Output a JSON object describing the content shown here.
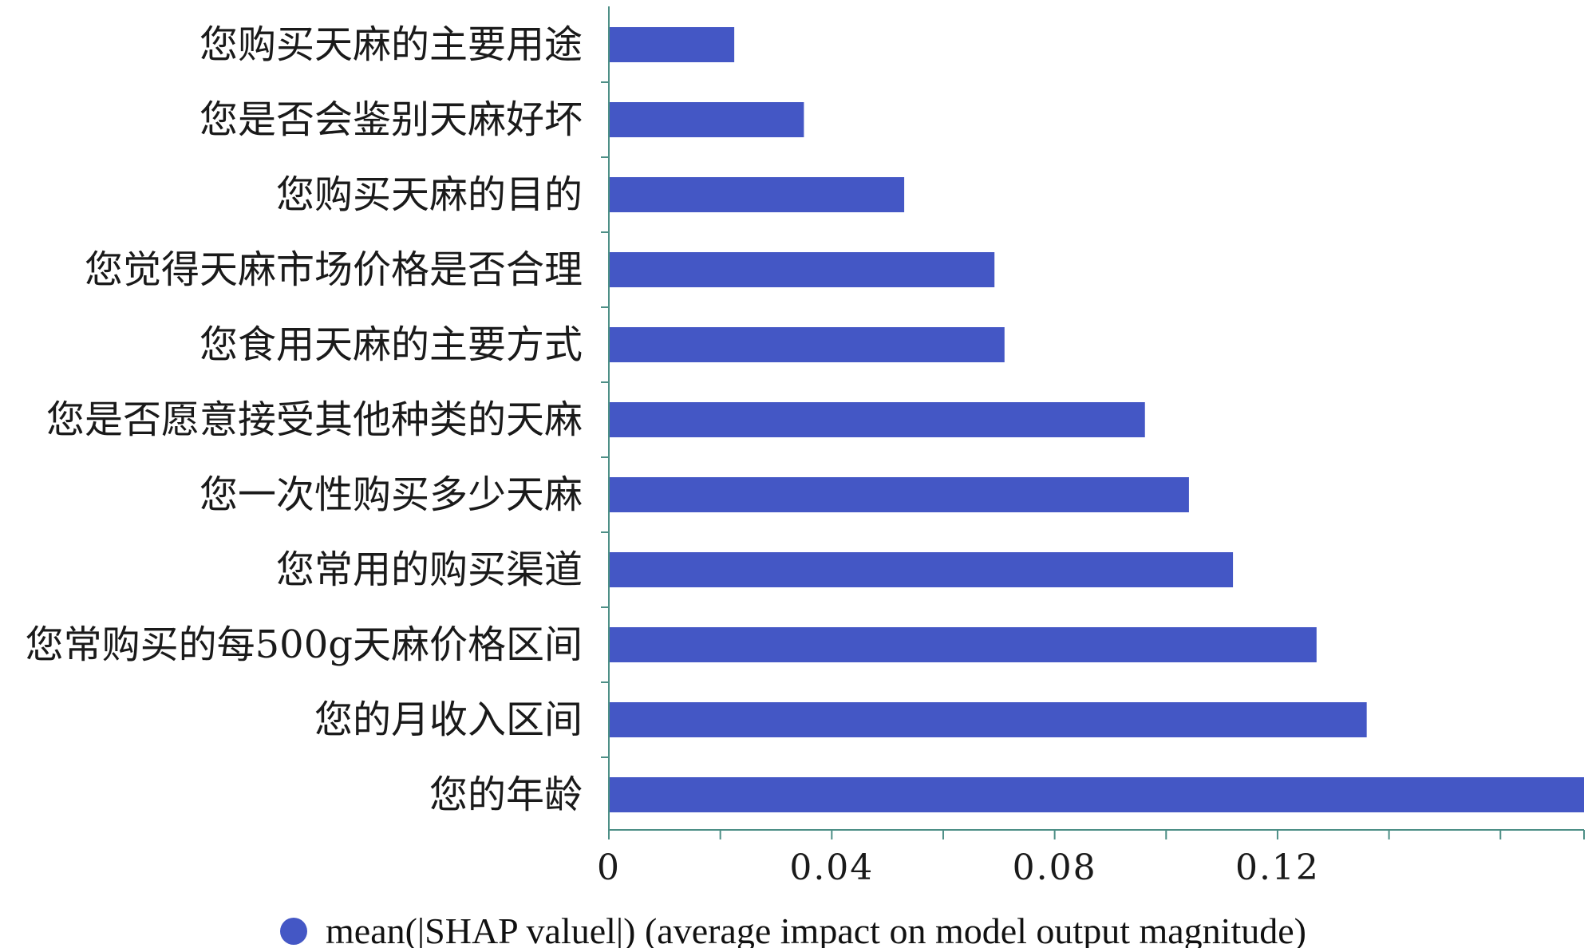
{
  "chart_data": {
    "type": "bar",
    "orientation": "horizontal",
    "categories": [
      "您购买天麻的主要用途",
      "您是否会鉴别天麻好坏",
      "您购买天麻的目的",
      "您觉得天麻市场价格是否合理",
      "您食用天麻的主要方式",
      "您是否愿意接受其他种类的天麻",
      "您一次性购买多少天麻",
      "您常用的购买渠道",
      "您常购买的每500g天麻价格区间",
      "您的月收入区间",
      "您的年龄"
    ],
    "values": [
      0.0225,
      0.035,
      0.053,
      0.0692,
      0.071,
      0.0962,
      0.1041,
      0.112,
      0.127,
      0.136,
      0.175
    ],
    "xlim": [
      0,
      0.175
    ],
    "xticks": [
      0,
      0.04,
      0.08,
      0.12
    ],
    "xtick_labels": [
      "0",
      "0.04",
      "0.08",
      "0.12"
    ],
    "minor_ticks": [
      0.02,
      0.06,
      0.1,
      0.14,
      0.16,
      0.175
    ],
    "series_name": "mean(|SHAP valuel|) (average impact on model output magnitude)",
    "bar_color": "#4457c5",
    "axis_color": "#4d8f86",
    "grid": false,
    "legend_position": "bottom-center"
  }
}
